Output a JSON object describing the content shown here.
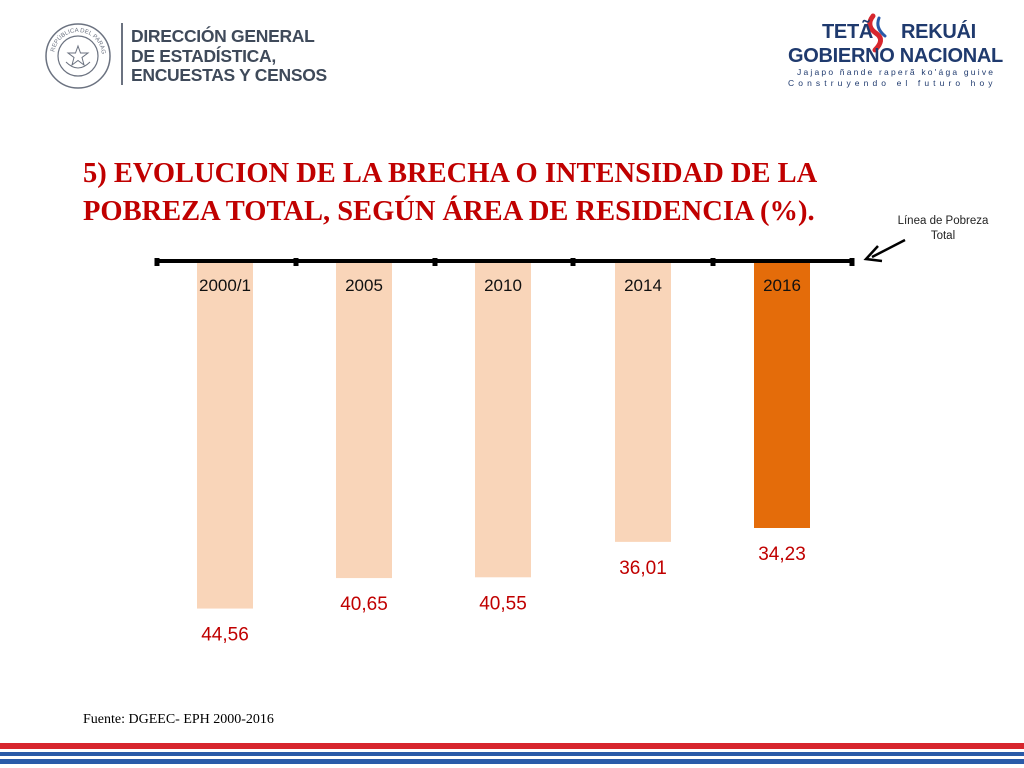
{
  "header": {
    "org_lines": [
      "DIRECCIÓN GENERAL",
      "DE ESTADÍSTICA,",
      "ENCUESTAS Y CENSOS"
    ],
    "seal_text": "REPÚBLICA DEL PARAGUAY",
    "gov_line1_a": "TETÃ",
    "gov_line1_b": "REKUÁI",
    "gov_line2": "GOBIERNO NACIONAL",
    "gov_line3": "Jajapo ñande raperã ko'ága guive",
    "gov_line4": "Construyendo el futuro hoy"
  },
  "title": "5) EVOLUCION DE LA BRECHA O INTENSIDAD DE LA POBREZA TOTAL, SEGÚN ÁREA DE RESIDENCIA (%).",
  "annotation": "Línea de Pobreza Total",
  "source": "Fuente: DGEEC-  EPH 2000-2016",
  "chart_data": {
    "type": "bar",
    "orientation": "downward",
    "categories": [
      "2000/1",
      "2005",
      "2010",
      "2014",
      "2016"
    ],
    "values": [
      44.56,
      40.65,
      40.55,
      36.01,
      34.23
    ],
    "value_labels": [
      "44,56",
      "40,65",
      "40,55",
      "36,01",
      "34,23"
    ],
    "highlight_index": 4,
    "title": "5) EVOLUCION DE LA BRECHA O INTENSIDAD DE LA POBREZA TOTAL, SEGÚN ÁREA DE RESIDENCIA (%).",
    "baseline_label": "Línea de Pobreza Total",
    "ylim": [
      0,
      50
    ]
  },
  "colors": {
    "bar": "#f9d5b9",
    "bar_highlight": "#e46c0a",
    "value_label": "#c00000",
    "title": "#c00000",
    "axis": "#000000"
  }
}
